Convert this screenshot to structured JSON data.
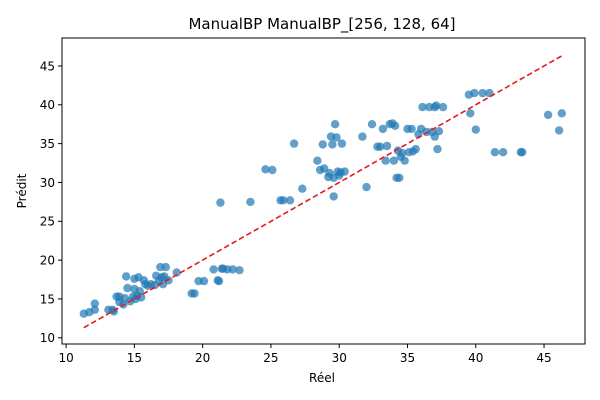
{
  "chart_data": {
    "type": "scatter",
    "title": "ManualBP ManualBP_[256, 128, 64]",
    "xlabel": "Réel",
    "ylabel": "Prédit",
    "xlim": [
      9.7,
      48.0
    ],
    "ylim": [
      9.2,
      48.6
    ],
    "xticks": [
      10,
      15,
      20,
      25,
      30,
      35,
      40,
      45
    ],
    "yticks": [
      10,
      15,
      20,
      25,
      30,
      35,
      40,
      45
    ],
    "xtick_labels": [
      "10",
      "15",
      "20",
      "25",
      "30",
      "35",
      "40",
      "45"
    ],
    "ytick_labels": [
      "10",
      "15",
      "20",
      "25",
      "30",
      "35",
      "40",
      "45"
    ],
    "grid": false,
    "colors": {
      "points": "#1f77b4",
      "reference": "#e31a1c"
    },
    "reference_line": {
      "style": "dashed",
      "x": [
        11.3,
        46.3
      ],
      "y": [
        11.3,
        46.3
      ]
    },
    "series": [
      {
        "points": [
          [
            11.3,
            13.1
          ],
          [
            11.7,
            13.3
          ],
          [
            12.1,
            13.6
          ],
          [
            12.1,
            14.4
          ],
          [
            13.1,
            13.6
          ],
          [
            13.4,
            13.6
          ],
          [
            13.5,
            13.4
          ],
          [
            13.7,
            15.3
          ],
          [
            13.9,
            14.6
          ],
          [
            13.9,
            15.3
          ],
          [
            14.2,
            14.3
          ],
          [
            14.3,
            15.1
          ],
          [
            14.4,
            17.9
          ],
          [
            14.5,
            16.4
          ],
          [
            14.7,
            14.7
          ],
          [
            14.9,
            15.3
          ],
          [
            15.0,
            17.6
          ],
          [
            15.0,
            16.3
          ],
          [
            15.1,
            15.0
          ],
          [
            15.2,
            15.4
          ],
          [
            15.3,
            17.8
          ],
          [
            15.4,
            16.0
          ],
          [
            15.5,
            15.2
          ],
          [
            15.7,
            17.4
          ],
          [
            15.8,
            16.9
          ],
          [
            16.0,
            16.7
          ],
          [
            16.2,
            16.9
          ],
          [
            16.5,
            16.8
          ],
          [
            16.6,
            18.0
          ],
          [
            16.8,
            17.4
          ],
          [
            16.9,
            19.1
          ],
          [
            17.0,
            17.8
          ],
          [
            17.1,
            16.9
          ],
          [
            17.2,
            17.9
          ],
          [
            17.3,
            19.1
          ],
          [
            17.5,
            17.4
          ],
          [
            18.1,
            18.4
          ],
          [
            19.2,
            15.7
          ],
          [
            19.4,
            15.7
          ],
          [
            19.7,
            17.3
          ],
          [
            20.1,
            17.3
          ],
          [
            20.8,
            18.8
          ],
          [
            21.1,
            17.4
          ],
          [
            21.2,
            17.3
          ],
          [
            21.4,
            18.9
          ],
          [
            21.5,
            18.9
          ],
          [
            21.8,
            18.8
          ],
          [
            22.2,
            18.8
          ],
          [
            22.7,
            18.7
          ],
          [
            21.3,
            27.4
          ],
          [
            23.5,
            27.5
          ],
          [
            24.6,
            31.7
          ],
          [
            25.1,
            31.6
          ],
          [
            25.7,
            27.7
          ],
          [
            25.9,
            27.7
          ],
          [
            26.4,
            27.7
          ],
          [
            26.7,
            35.0
          ],
          [
            27.3,
            29.2
          ],
          [
            28.4,
            32.8
          ],
          [
            28.6,
            31.6
          ],
          [
            28.8,
            34.9
          ],
          [
            28.9,
            31.8
          ],
          [
            29.2,
            30.7
          ],
          [
            29.3,
            31.2
          ],
          [
            29.4,
            35.9
          ],
          [
            29.5,
            34.9
          ],
          [
            29.6,
            30.6
          ],
          [
            29.7,
            37.5
          ],
          [
            29.8,
            35.8
          ],
          [
            29.9,
            31.4
          ],
          [
            29.6,
            28.2
          ],
          [
            30.0,
            30.9
          ],
          [
            30.1,
            31.3
          ],
          [
            30.2,
            35.0
          ],
          [
            30.4,
            31.4
          ],
          [
            31.7,
            35.9
          ],
          [
            32.0,
            29.4
          ],
          [
            32.4,
            37.5
          ],
          [
            32.8,
            34.6
          ],
          [
            33.0,
            34.6
          ],
          [
            33.2,
            36.9
          ],
          [
            33.4,
            32.8
          ],
          [
            33.5,
            34.7
          ],
          [
            33.7,
            37.5
          ],
          [
            33.9,
            37.6
          ],
          [
            34.0,
            32.8
          ],
          [
            34.1,
            37.3
          ],
          [
            34.2,
            30.6
          ],
          [
            34.3,
            34.1
          ],
          [
            34.4,
            30.6
          ],
          [
            34.5,
            33.3
          ],
          [
            34.6,
            33.8
          ],
          [
            34.8,
            32.8
          ],
          [
            35.0,
            36.9
          ],
          [
            35.1,
            33.9
          ],
          [
            35.3,
            36.9
          ],
          [
            35.4,
            34.0
          ],
          [
            35.6,
            34.3
          ],
          [
            35.8,
            36.2
          ],
          [
            36.0,
            36.9
          ],
          [
            36.1,
            39.7
          ],
          [
            36.4,
            36.5
          ],
          [
            36.6,
            39.7
          ],
          [
            36.8,
            36.5
          ],
          [
            37.0,
            39.7
          ],
          [
            37.0,
            35.9
          ],
          [
            37.1,
            39.9
          ],
          [
            37.2,
            34.3
          ],
          [
            37.3,
            36.6
          ],
          [
            37.6,
            39.7
          ],
          [
            39.5,
            41.3
          ],
          [
            39.6,
            38.9
          ],
          [
            39.9,
            41.5
          ],
          [
            40.0,
            36.8
          ],
          [
            40.5,
            41.5
          ],
          [
            41.0,
            41.5
          ],
          [
            41.4,
            33.9
          ],
          [
            42.0,
            33.9
          ],
          [
            43.3,
            33.9
          ],
          [
            43.4,
            33.9
          ],
          [
            45.3,
            38.7
          ],
          [
            46.1,
            36.7
          ],
          [
            46.3,
            38.9
          ]
        ]
      }
    ]
  }
}
